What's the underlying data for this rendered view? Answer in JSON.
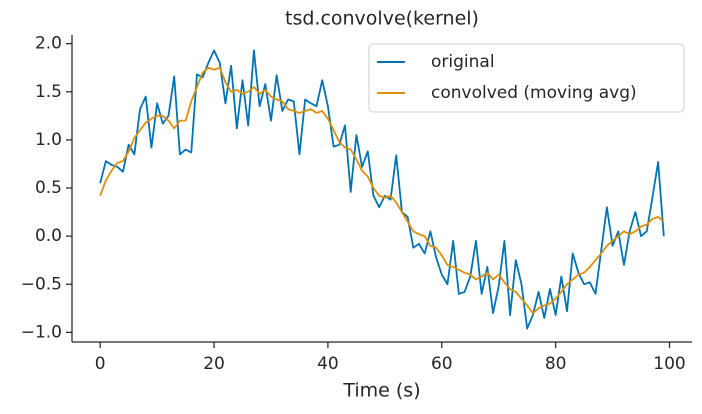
{
  "chart_data": {
    "type": "line",
    "title": "tsd.convolve(kernel)",
    "xlabel": "Time (s)",
    "x": [
      0,
      1,
      2,
      3,
      4,
      5,
      6,
      7,
      8,
      9,
      10,
      11,
      12,
      13,
      14,
      15,
      16,
      17,
      18,
      19,
      20,
      21,
      22,
      23,
      24,
      25,
      26,
      27,
      28,
      29,
      30,
      31,
      32,
      33,
      34,
      35,
      36,
      37,
      38,
      39,
      40,
      41,
      42,
      43,
      44,
      45,
      46,
      47,
      48,
      49,
      50,
      51,
      52,
      53,
      54,
      55,
      56,
      57,
      58,
      59,
      60,
      61,
      62,
      63,
      64,
      65,
      66,
      67,
      68,
      69,
      70,
      71,
      72,
      73,
      74,
      75,
      76,
      77,
      78,
      79,
      80,
      81,
      82,
      83,
      84,
      85,
      86,
      87,
      88,
      89,
      90,
      91,
      92,
      93,
      94,
      95,
      96,
      97,
      98,
      99
    ],
    "series": [
      {
        "name": "original",
        "color": "#0173b2",
        "values": [
          0.55,
          0.78,
          0.74,
          0.72,
          0.67,
          0.95,
          0.85,
          1.32,
          1.45,
          0.92,
          1.38,
          1.17,
          1.25,
          1.66,
          0.85,
          0.9,
          0.87,
          1.68,
          1.65,
          1.8,
          1.93,
          1.8,
          1.38,
          1.77,
          1.12,
          1.62,
          1.15,
          1.93,
          1.35,
          1.58,
          1.2,
          1.67,
          1.3,
          1.42,
          1.4,
          0.85,
          1.42,
          1.38,
          1.35,
          1.62,
          1.35,
          0.93,
          0.95,
          1.15,
          0.46,
          1.05,
          0.72,
          0.88,
          0.42,
          0.3,
          0.42,
          0.38,
          0.84,
          0.25,
          0.2,
          -0.12,
          -0.08,
          -0.18,
          0.05,
          -0.22,
          -0.4,
          -0.5,
          -0.05,
          -0.6,
          -0.58,
          -0.42,
          -0.05,
          -0.6,
          -0.32,
          -0.8,
          -0.52,
          -0.05,
          -0.82,
          -0.25,
          -0.5,
          -0.96,
          -0.82,
          -0.58,
          -0.85,
          -0.55,
          -0.82,
          -0.42,
          -0.78,
          -0.18,
          -0.38,
          -0.5,
          -0.48,
          -0.6,
          -0.15,
          0.3,
          -0.1,
          0.05,
          -0.3,
          0.05,
          0.25,
          0.0,
          0.05,
          0.4,
          0.77,
          0.0
        ]
      },
      {
        "name": "convolved (moving avg)",
        "color": "#de8f05",
        "values": [
          0.42,
          0.58,
          0.68,
          0.76,
          0.78,
          0.88,
          1.02,
          1.1,
          1.18,
          1.22,
          1.25,
          1.25,
          1.2,
          1.12,
          1.2,
          1.2,
          1.4,
          1.55,
          1.7,
          1.75,
          1.73,
          1.75,
          1.6,
          1.5,
          1.52,
          1.48,
          1.5,
          1.55,
          1.48,
          1.52,
          1.45,
          1.42,
          1.4,
          1.32,
          1.3,
          1.28,
          1.3,
          1.32,
          1.28,
          1.3,
          1.22,
          1.1,
          0.98,
          0.92,
          0.9,
          0.8,
          0.68,
          0.62,
          0.5,
          0.42,
          0.4,
          0.42,
          0.35,
          0.25,
          0.15,
          0.05,
          0.02,
          0.0,
          -0.1,
          -0.12,
          -0.2,
          -0.3,
          -0.32,
          -0.35,
          -0.38,
          -0.4,
          -0.45,
          -0.42,
          -0.38,
          -0.45,
          -0.4,
          -0.48,
          -0.55,
          -0.58,
          -0.65,
          -0.72,
          -0.8,
          -0.75,
          -0.72,
          -0.7,
          -0.65,
          -0.58,
          -0.5,
          -0.45,
          -0.4,
          -0.38,
          -0.32,
          -0.25,
          -0.18,
          -0.1,
          -0.05,
          0.0,
          0.05,
          0.02,
          0.05,
          0.1,
          0.12,
          0.18,
          0.2,
          0.15
        ]
      }
    ],
    "xlim": [
      -4.95,
      103.95
    ],
    "ylim": [
      -1.1,
      2.09
    ],
    "xticks": [
      0,
      20,
      40,
      60,
      80,
      100
    ],
    "yticks": [
      {
        "value": -1,
        "label": "−1.0"
      },
      {
        "value": -0.5,
        "label": "−0.5"
      },
      {
        "value": 0,
        "label": "0.0"
      },
      0.5,
      {
        "value": 1,
        "label": "1.0"
      },
      1.5,
      {
        "value": 2,
        "label": "2.0"
      }
    ],
    "legend": "upper right"
  }
}
